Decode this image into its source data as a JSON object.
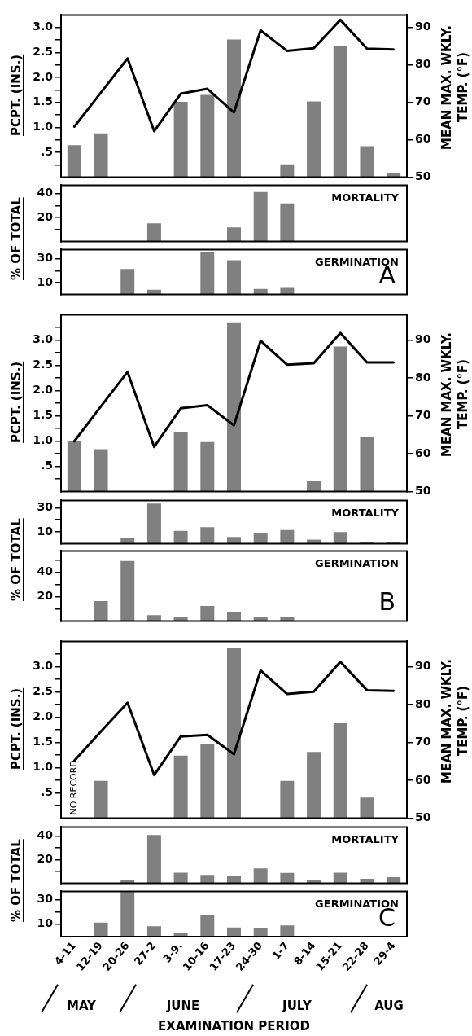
{
  "chart_data": [
    {
      "type": "bar",
      "categories": [
        null,
        null,
        null,
        null,
        null,
        null,
        null,
        null,
        null,
        null,
        null,
        null,
        null
      ],
      "ylabel": "PCPT. (INS.)",
      "y2label": "MEAN MAX. WKLY. TEMP. (°F)",
      "ylim": [
        0,
        3.25
      ],
      "yticks": [
        {
          "value": 0.25,
          "label": null
        },
        {
          "value": 0.5,
          "label": ".5"
        },
        {
          "value": 0.75,
          "label": null
        },
        {
          "value": 1,
          "label": "1.0"
        },
        {
          "value": 1.25,
          "label": null
        },
        {
          "value": 1.5,
          "label": "1.5"
        },
        {
          "value": 1.75,
          "label": null
        },
        {
          "value": 2,
          "label": "2.0"
        },
        {
          "value": 2.25,
          "label": null
        },
        {
          "value": 2.5,
          "label": "2.5"
        },
        {
          "value": 2.75,
          "label": null
        },
        {
          "value": 3,
          "label": "3.0"
        }
      ],
      "y2lim": [
        50,
        93.3
      ],
      "y2ticks": [
        50,
        60,
        70,
        80,
        90
      ],
      "tick_labels": "y",
      "marker": "none",
      "series": [
        {
          "type": "bar",
          "color": "#808080",
          "values": [
            0.64,
            0.88,
            null,
            null,
            1.51,
            1.65,
            2.76,
            null,
            0.26,
            1.52,
            2.62,
            0.62,
            0.09
          ]
        },
        {
          "type": "line",
          "axis": "y2",
          "color": "#000000",
          "values": [
            63.5,
            72.6,
            81.7,
            62.3,
            72.3,
            73.6,
            67.3,
            89.2,
            83.7,
            84.4,
            92.0,
            84.3,
            84.1
          ]
        }
      ]
    },
    {
      "type": "bar",
      "title": "MORTALITY",
      "categories": [
        null,
        null,
        null,
        null,
        null,
        null,
        null,
        null,
        null,
        null,
        null,
        null,
        null
      ],
      "ylabel": "% OF TOTAL",
      "ylim": [
        0,
        47
      ],
      "yticks": [
        {
          "value": 10,
          "label": null
        },
        20,
        {
          "value": 30,
          "label": null
        },
        40
      ],
      "tick_labels": "y",
      "color": "#808080",
      "values": [
        null,
        null,
        null,
        15.1,
        null,
        null,
        11.8,
        41.4,
        31.8,
        null,
        null,
        null,
        null
      ]
    },
    {
      "type": "bar",
      "title": "GERMINATION",
      "annotations": [
        "A"
      ],
      "categories": [
        null,
        null,
        null,
        null,
        null,
        null,
        null,
        null,
        null,
        null,
        null,
        null,
        null
      ],
      "ylim": [
        0,
        37.7
      ],
      "yticks": [
        10,
        {
          "value": 20,
          "label": null
        },
        30
      ],
      "tick_labels": "y",
      "color": "#808080",
      "values": [
        null,
        null,
        21.4,
        4.0,
        null,
        35.8,
        28.8,
        4.7,
        6.3,
        null,
        null,
        null,
        null
      ]
    },
    {
      "type": "bar",
      "categories": [
        null,
        null,
        null,
        null,
        null,
        null,
        null,
        null,
        null,
        null,
        null,
        null,
        null
      ],
      "ylabel": "PCPT. (INS.)",
      "y2label": "MEAN MAX. WKLY. TEMP. (°F)",
      "ylim": [
        0,
        3.5
      ],
      "yticks": [
        {
          "value": 0.25,
          "label": null
        },
        {
          "value": 0.5,
          "label": ".5"
        },
        {
          "value": 0.75,
          "label": null
        },
        {
          "value": 1,
          "label": "1.0"
        },
        {
          "value": 1.25,
          "label": null
        },
        {
          "value": 1.5,
          "label": "1.5"
        },
        {
          "value": 1.75,
          "label": null
        },
        {
          "value": 2,
          "label": "2.0"
        },
        {
          "value": 2.25,
          "label": null
        },
        {
          "value": 2.5,
          "label": "2.5"
        },
        {
          "value": 2.75,
          "label": null
        },
        {
          "value": 3,
          "label": "3.0"
        },
        {
          "value": 3.25,
          "label": null
        }
      ],
      "y2lim": [
        50,
        96.7
      ],
      "y2ticks": [
        50,
        60,
        70,
        80,
        90
      ],
      "tick_labels": "y",
      "marker": "none",
      "series": [
        {
          "type": "bar",
          "color": "#808080",
          "values": [
            1.01,
            0.84,
            null,
            null,
            1.17,
            0.98,
            3.35,
            null,
            null,
            0.21,
            2.87,
            1.09,
            null
          ]
        },
        {
          "type": "line",
          "axis": "y2",
          "color": "#000000",
          "values": [
            63.3,
            72.5,
            81.6,
            61.8,
            72.0,
            72.8,
            67.5,
            89.8,
            83.5,
            83.9,
            91.9,
            84.1,
            84.1
          ]
        }
      ]
    },
    {
      "type": "bar",
      "title": "MORTALITY",
      "categories": [
        null,
        null,
        null,
        null,
        null,
        null,
        null,
        null,
        null,
        null,
        null,
        null,
        null
      ],
      "ylabel": "% OF TOTAL",
      "ylim": [
        0,
        36.2
      ],
      "yticks": [
        10,
        {
          "value": 20,
          "label": null
        },
        30
      ],
      "tick_labels": "y",
      "color": "#808080",
      "values": [
        null,
        null,
        5.1,
        33.6,
        10.8,
        13.8,
        5.7,
        8.5,
        11.5,
        3.4,
        9.7,
        1.8,
        1.8
      ]
    },
    {
      "type": "bar",
      "title": "GERMINATION",
      "annotations": [
        "B"
      ],
      "categories": [
        null,
        null,
        null,
        null,
        null,
        null,
        null,
        null,
        null,
        null,
        null,
        null,
        null
      ],
      "ylim": [
        0,
        57.6
      ],
      "yticks": [
        {
          "value": 10,
          "label": null
        },
        20,
        {
          "value": 30,
          "label": null
        },
        40,
        {
          "value": 50,
          "label": null
        }
      ],
      "tick_labels": "y",
      "color": "#808080",
      "values": [
        null,
        16.5,
        49.4,
        4.9,
        3.5,
        12.5,
        7.1,
        3.8,
        3.3,
        null,
        null,
        null,
        null
      ]
    },
    {
      "type": "bar",
      "annotations": [
        "NO RECORD"
      ],
      "categories": [
        null,
        null,
        null,
        null,
        null,
        null,
        null,
        null,
        null,
        null,
        null,
        null,
        null
      ],
      "ylabel": "PCPT. (INS.)",
      "y2label": "MEAN MAX. WKLY. TEMP. (°F)",
      "ylim": [
        0,
        3.5
      ],
      "yticks": [
        {
          "value": 0.25,
          "label": null
        },
        {
          "value": 0.5,
          "label": ".5"
        },
        {
          "value": 0.75,
          "label": null
        },
        {
          "value": 1,
          "label": "1.0"
        },
        {
          "value": 1.25,
          "label": null
        },
        {
          "value": 1.5,
          "label": "1.5"
        },
        {
          "value": 1.75,
          "label": null
        },
        {
          "value": 2,
          "label": "2.0"
        },
        {
          "value": 2.25,
          "label": null
        },
        {
          "value": 2.5,
          "label": "2.5"
        },
        {
          "value": 2.75,
          "label": null
        },
        {
          "value": 3,
          "label": "3.0"
        },
        {
          "value": 3.25,
          "label": null
        }
      ],
      "y2lim": [
        50,
        96.7
      ],
      "y2ticks": [
        50,
        60,
        70,
        80,
        90
      ],
      "tick_labels": "y",
      "marker": "none",
      "series": [
        {
          "type": "bar",
          "color": "#808080",
          "values": [
            null,
            0.74,
            null,
            null,
            1.24,
            1.46,
            3.37,
            null,
            0.74,
            1.31,
            1.88,
            0.41,
            null
          ]
        },
        {
          "type": "line",
          "axis": "y2",
          "color": "#000000",
          "values": [
            65.2,
            72.9,
            80.5,
            61.4,
            71.6,
            72.0,
            66.9,
            89.0,
            82.8,
            83.4,
            91.3,
            83.8,
            83.6
          ]
        }
      ]
    },
    {
      "type": "bar",
      "title": "MORTALITY",
      "categories": [
        null,
        null,
        null,
        null,
        null,
        null,
        null,
        null,
        null,
        null,
        null,
        null,
        null
      ],
      "ylabel": "% OF TOTAL",
      "ylim": [
        0,
        47.5
      ],
      "yticks": [
        {
          "value": 10,
          "label": null
        },
        20,
        {
          "value": 30,
          "label": null
        },
        40
      ],
      "tick_labels": "y",
      "color": "#808080",
      "values": [
        null,
        null,
        2.4,
        40.7,
        9.0,
        7.1,
        6.2,
        12.6,
        8.8,
        3.1,
        9.0,
        3.8,
        5.2
      ]
    },
    {
      "type": "bar",
      "title": "GERMINATION",
      "xlabel": "EXAMINATION PERIOD",
      "annotations": [
        "C",
        "MAY",
        "JUNE",
        "JULY",
        "AUG"
      ],
      "categories": [
        "4-11",
        "12-19",
        "20-26",
        "27-2",
        "3-9.",
        "10-16",
        "17-23",
        "24-30",
        "1-7",
        "8-14",
        "15-21",
        "22-28",
        "29-4"
      ],
      "ylim": [
        0,
        36.5
      ],
      "yticks": [
        10,
        {
          "value": 20,
          "label": null
        },
        30
      ],
      "color": "#808080",
      "values": [
        null,
        11.4,
        36.0,
        8.4,
        2.6,
        17.0,
        7.4,
        6.5,
        9.1,
        null,
        null,
        null,
        null
      ]
    }
  ]
}
